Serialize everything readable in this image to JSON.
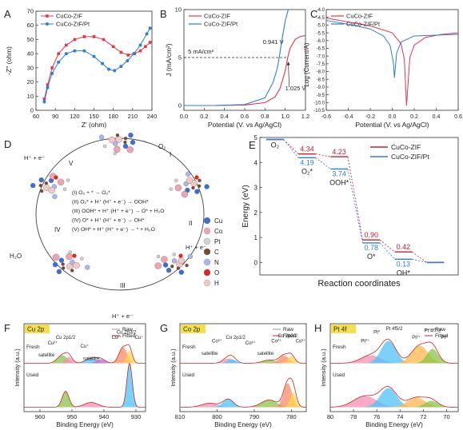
{
  "chart_data": [
    {
      "panel": "A",
      "type": "scatter",
      "xlabel": "Z' (ohm)",
      "ylabel": "-Z'' (ohm)",
      "xlim": [
        60,
        240
      ],
      "ylim": [
        0,
        70
      ],
      "xticks": [
        60,
        90,
        120,
        150,
        180,
        210,
        240
      ],
      "yticks": [
        0,
        10,
        20,
        30,
        40,
        50,
        60,
        70
      ],
      "legend_position": "top-left",
      "series": [
        {
          "name": "CuCo-ZIF",
          "color": "#e5354d",
          "x": [
            73,
            78,
            85,
            95,
            107,
            120,
            135,
            150,
            165,
            180,
            192,
            203,
            213,
            222,
            230,
            237
          ],
          "y": [
            8,
            18,
            30,
            40,
            46,
            50,
            52,
            52,
            50,
            45,
            41,
            39,
            40,
            42,
            45,
            48
          ]
        },
        {
          "name": "CuCo-ZIF/Pt",
          "color": "#2f7fd0",
          "x": [
            73,
            78,
            85,
            95,
            107,
            120,
            135,
            150,
            163,
            173,
            182,
            192,
            202,
            212,
            222,
            232,
            237
          ],
          "y": [
            6,
            16,
            26,
            34,
            40,
            42,
            42,
            38,
            33,
            29,
            28,
            31,
            35,
            40,
            46,
            54,
            58
          ]
        }
      ]
    },
    {
      "panel": "B",
      "type": "line",
      "xlabel": "Potential (V. vs Ag/AgCl)",
      "ylabel": "J (mA/cm²)",
      "xlim": [
        0,
        1.2
      ],
      "ylim": [
        -0.5,
        10
      ],
      "xticks": [
        "0.0",
        "0.2",
        "0.4",
        "0.6",
        "0.8",
        "1.0",
        "1.2"
      ],
      "yticks": [
        0,
        5,
        10
      ],
      "legend_position": "top-left",
      "annotations": [
        {
          "text": "5 mA/cm²",
          "x": 0.04,
          "y": 5.4
        },
        {
          "text": "0.941 V",
          "x": 0.78,
          "y": 6.4
        },
        {
          "text": "1.025 V",
          "x": 1.0,
          "y": 1.6
        }
      ],
      "series": [
        {
          "name": "CuCo-ZIF",
          "color": "#e5354d",
          "x": [
            0,
            0.3,
            0.6,
            0.8,
            0.9,
            0.95,
            1.0,
            1.025,
            1.05,
            1.1,
            1.15,
            1.2
          ],
          "y": [
            0,
            0,
            0.05,
            0.3,
            0.9,
            1.8,
            3.6,
            5.0,
            6.0,
            6.9,
            7.2,
            7.3
          ]
        },
        {
          "name": "CuCo-ZIF/Pt",
          "color": "#2f7fd0",
          "x": [
            0,
            0.3,
            0.6,
            0.8,
            0.88,
            0.92,
            0.941,
            0.97,
            1.0,
            1.03
          ],
          "y": [
            0,
            0,
            0.1,
            0.8,
            2.4,
            3.8,
            5.0,
            7.0,
            8.8,
            10
          ]
        }
      ]
    },
    {
      "panel": "C",
      "type": "line",
      "xlabel": "Potential (V. vs Ag/AgCl)",
      "ylabel": "Log (Current/A)",
      "xlim": [
        -0.6,
        0.6
      ],
      "ylim": [
        -10.5,
        -4
      ],
      "xticks": [
        "-0.6",
        "-0.4",
        "-0.2",
        "0.0",
        "0.2",
        "0.4",
        "0.6"
      ],
      "yticks": [
        "-4.0",
        "-4.5",
        "-5.0",
        "-5.5",
        "-6.0",
        "-6.5",
        "-7.0",
        "-7.5",
        "-8.0",
        "-8.5",
        "-9.0",
        "-9.5",
        "-10.0",
        "-10.5"
      ],
      "legend_position": "top-left",
      "series": [
        {
          "name": "CuCo-ZIF",
          "color": "#e5354d",
          "x": [
            -0.6,
            -0.4,
            -0.2,
            0.0,
            0.08,
            0.11,
            0.13,
            0.16,
            0.2,
            0.3,
            0.45,
            0.6
          ],
          "y": [
            -4.55,
            -4.8,
            -5.05,
            -5.5,
            -6.2,
            -7.2,
            -10.2,
            -7.1,
            -6.3,
            -5.8,
            -5.6,
            -5.5
          ]
        },
        {
          "name": "CuCo-ZIF/Pt",
          "color": "#2f7fd0",
          "x": [
            -0.6,
            -0.4,
            -0.2,
            -0.08,
            -0.02,
            0.01,
            0.02,
            0.04,
            0.08,
            0.2,
            0.4,
            0.6
          ],
          "y": [
            -4.7,
            -4.95,
            -5.25,
            -5.7,
            -6.3,
            -7.4,
            -8.4,
            -6.8,
            -6.1,
            -5.7,
            -5.65,
            -5.6
          ]
        }
      ]
    },
    {
      "panel": "E",
      "type": "line",
      "xlabel": "Reaction coordinates",
      "ylabel": "Energy (eV)",
      "ylim": [
        -0.5,
        5
      ],
      "yticks": [
        0,
        1,
        2,
        3,
        4,
        5
      ],
      "legend_position": "top-right",
      "states": [
        "O₂",
        "O₂*",
        "OOH*",
        "O*",
        "OH*",
        ""
      ],
      "series": [
        {
          "name": "CuCo-ZIF",
          "color": "#c42032",
          "values": [
            4.92,
            4.34,
            4.23,
            0.9,
            0.42,
            0
          ],
          "labels": [
            "",
            "4.34",
            "4.23",
            "0.90",
            "0.42",
            ""
          ]
        },
        {
          "name": "CuCo-ZIF/Pt",
          "color": "#2f7fd0",
          "values": [
            4.92,
            4.19,
            3.74,
            0.78,
            0.13,
            0
          ],
          "labels": [
            "",
            "4.19",
            "3.74",
            "0.78",
            "0.13",
            ""
          ]
        }
      ]
    },
    {
      "panel": "F",
      "type": "area",
      "tag": "Cu 2p",
      "xlabel": "Binding Energy (eV)",
      "ylabel": "Intensity (a.u.)",
      "xlim": [
        965,
        927
      ],
      "xticks": [
        960,
        950,
        940,
        930
      ],
      "legend": [
        "Raw",
        "Fitted"
      ],
      "annotations": [
        "Fresh",
        "Used",
        "Cu²⁺",
        "Cu 2p1/2",
        "Cu⁺",
        "satellite",
        "satellite",
        "Cu²⁺",
        "Cu 2p3/2",
        "Cu⁺"
      ]
    },
    {
      "panel": "G",
      "type": "area",
      "tag": "Co 2p",
      "xlabel": "Binding Energy (eV)",
      "ylabel": "Intensity (a.u.)",
      "xlim": [
        810,
        776
      ],
      "xticks": [
        810,
        800,
        790,
        780
      ],
      "legend": [
        "Raw",
        "Fitted"
      ],
      "annotations": [
        "Fresh",
        "Used",
        "Co²⁺",
        "Co 2p1/2",
        "Co³⁺",
        "satellite",
        "satellite",
        "Co²⁺",
        "Co 2p3/2",
        "Co³⁺"
      ]
    },
    {
      "panel": "H",
      "type": "area",
      "tag": "Pt 4f",
      "xlabel": "Binding Energy (eV)",
      "ylabel": "Intensity (a.u.)",
      "xlim": [
        80,
        69
      ],
      "xticks": [
        80,
        78,
        76,
        74,
        72,
        70
      ],
      "legend": [
        "Raw",
        "Fitted"
      ],
      "annotations": [
        "Fresh",
        "Used",
        "Pt²⁺",
        "Pt⁰",
        "Pt 4f5/2",
        "Pt²⁺",
        "Pt 4f7/2",
        "Pt⁰"
      ]
    }
  ],
  "scheme_D": {
    "panel": "D",
    "reactions": [
      "(I) O₂ + * → O₂*",
      "(II) O₂* + H⁺ (H⁺ + e⁻) → OOH*",
      "(III) OOH* + H⁺ (H⁺ + e⁻) → O* + H₂O",
      "(IV) O* + H⁺ (H⁺ + e⁻) → OH*",
      "(V) OH* + H⁺ (H⁺ + e⁻) → * + H₂O"
    ],
    "step_labels": [
      "I",
      "II",
      "III",
      "IV",
      "V"
    ],
    "species": [
      "O₂",
      "H⁺ + e⁻",
      "H⁺ + e⁻",
      "H⁺ + e⁻",
      "H⁺ + e⁻",
      "H₂O"
    ],
    "legend": [
      {
        "label": "Cu",
        "color": "#3b6fd4"
      },
      {
        "label": "Co",
        "color": "#f0a3b3"
      },
      {
        "label": "Pt",
        "color": "#d2d2d2"
      },
      {
        "label": "C",
        "color": "#7a4a2c"
      },
      {
        "label": "N",
        "color": "#a9b8e8"
      },
      {
        "label": "O",
        "color": "#e8231f"
      },
      {
        "label": "H",
        "color": "#f2c9c9"
      }
    ]
  }
}
